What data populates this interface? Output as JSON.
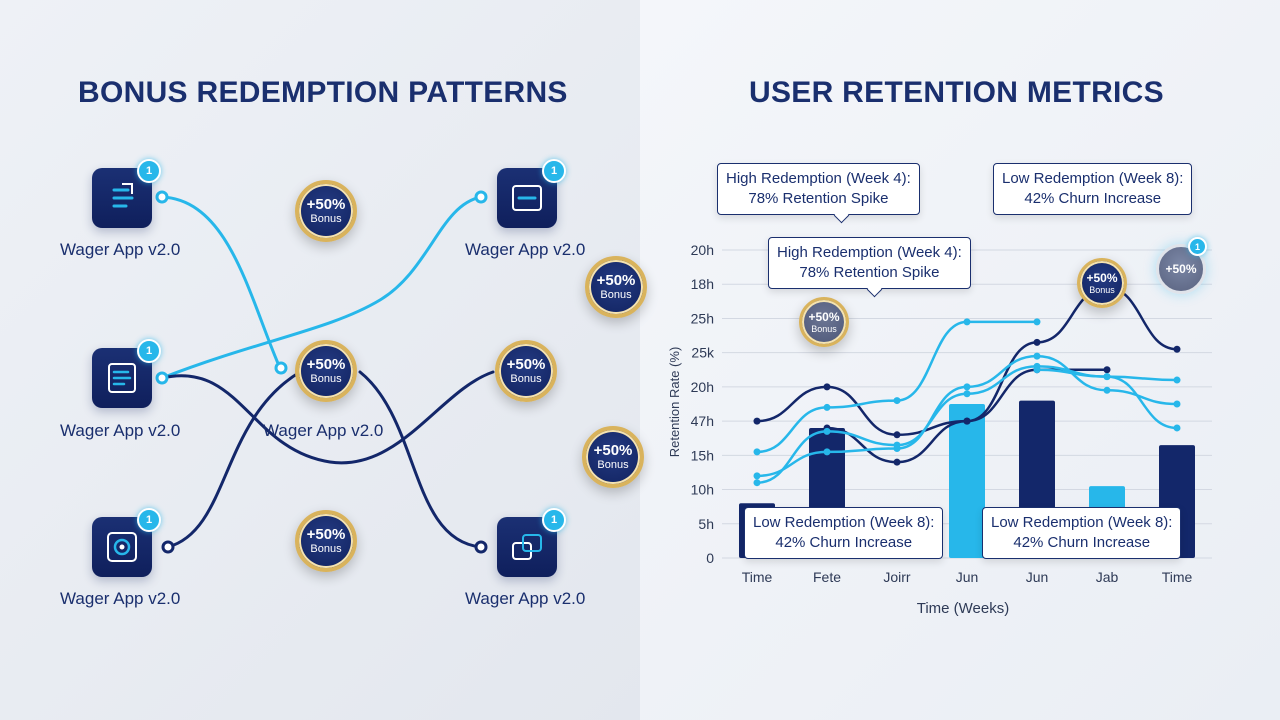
{
  "left_panel": {
    "title": "BONUS REDEMPTION PATTERNS",
    "app_label": "Wager App v2.0",
    "badge_count": "1",
    "apps": [
      {
        "name": "Wager App v2.0",
        "icon": "list-doc-icon"
      },
      {
        "name": "Wager App v2.0",
        "icon": "notes-doc-icon"
      },
      {
        "name": "Wager App v2.0",
        "icon": "gear-frame-icon"
      },
      {
        "name": "Wager App v2.0",
        "icon": "window-frame-icon"
      },
      {
        "name": "Wager App v2.0",
        "icon": "window-frame-icon"
      },
      {
        "name": "Wager App v2.0",
        "icon": "layers-frame-icon"
      }
    ],
    "coin": {
      "pct": "+50%",
      "text": "Bonus"
    },
    "colors": {
      "navy": "#13276a",
      "cyan": "#27b7ea",
      "gold": "#d9b35c"
    }
  },
  "right_panel": {
    "title": "USER RETENTION METRICS",
    "callouts": {
      "high": {
        "line1": "High Redemption (Week 4):",
        "line2": "78% Retention Spike"
      },
      "low": {
        "line1": "Low Redemption (Week 8):",
        "line2": "42% Churn Increase"
      }
    },
    "coin": {
      "pct": "+50%",
      "text": "Bonus"
    },
    "badge_count": "1"
  },
  "chart_data": {
    "type": "bar",
    "title": "USER RETENTION METRICS",
    "xlabel": "Time (Weeks)",
    "ylabel": "Retention Rate (%)",
    "categories": [
      "Time",
      "Fete",
      "Joirr",
      "Jun",
      "Jun",
      "Jab",
      "Time"
    ],
    "yticks": [
      "0",
      "5h",
      "10h",
      "15h",
      "47h",
      "20h",
      "25k",
      "25h",
      "18h",
      "20h"
    ],
    "ylim": [
      0,
      9
    ],
    "grid": true,
    "bar_series": [
      {
        "color": "#13276a",
        "values": [
          1.6,
          3.8,
          0,
          0,
          4.6,
          0,
          3.3
        ]
      },
      {
        "color": "#27b7ea",
        "values": [
          0,
          0,
          1.3,
          4.5,
          0,
          2.1,
          0
        ]
      }
    ],
    "line_series": [
      {
        "color": "#13276a",
        "values": [
          4.0,
          5.0,
          3.6,
          4.0,
          6.3,
          7.9,
          6.1
        ]
      },
      {
        "color": "#13276a",
        "values": [
          null,
          3.8,
          2.8,
          4.0,
          5.5,
          5.5,
          null
        ]
      },
      {
        "color": "#27b7ea",
        "values": [
          3.1,
          4.4,
          4.6,
          6.9,
          6.9,
          null,
          null
        ]
      },
      {
        "color": "#27b7ea",
        "values": [
          2.4,
          3.1,
          3.2,
          5.0,
          5.9,
          4.9,
          4.5
        ]
      },
      {
        "color": "#27b7ea",
        "values": [
          2.2,
          3.7,
          3.3,
          4.8,
          5.6,
          5.3,
          3.8
        ]
      },
      {
        "color": "#27b7ea",
        "values": [
          null,
          null,
          null,
          null,
          5.5,
          5.3,
          5.2
        ]
      }
    ]
  }
}
